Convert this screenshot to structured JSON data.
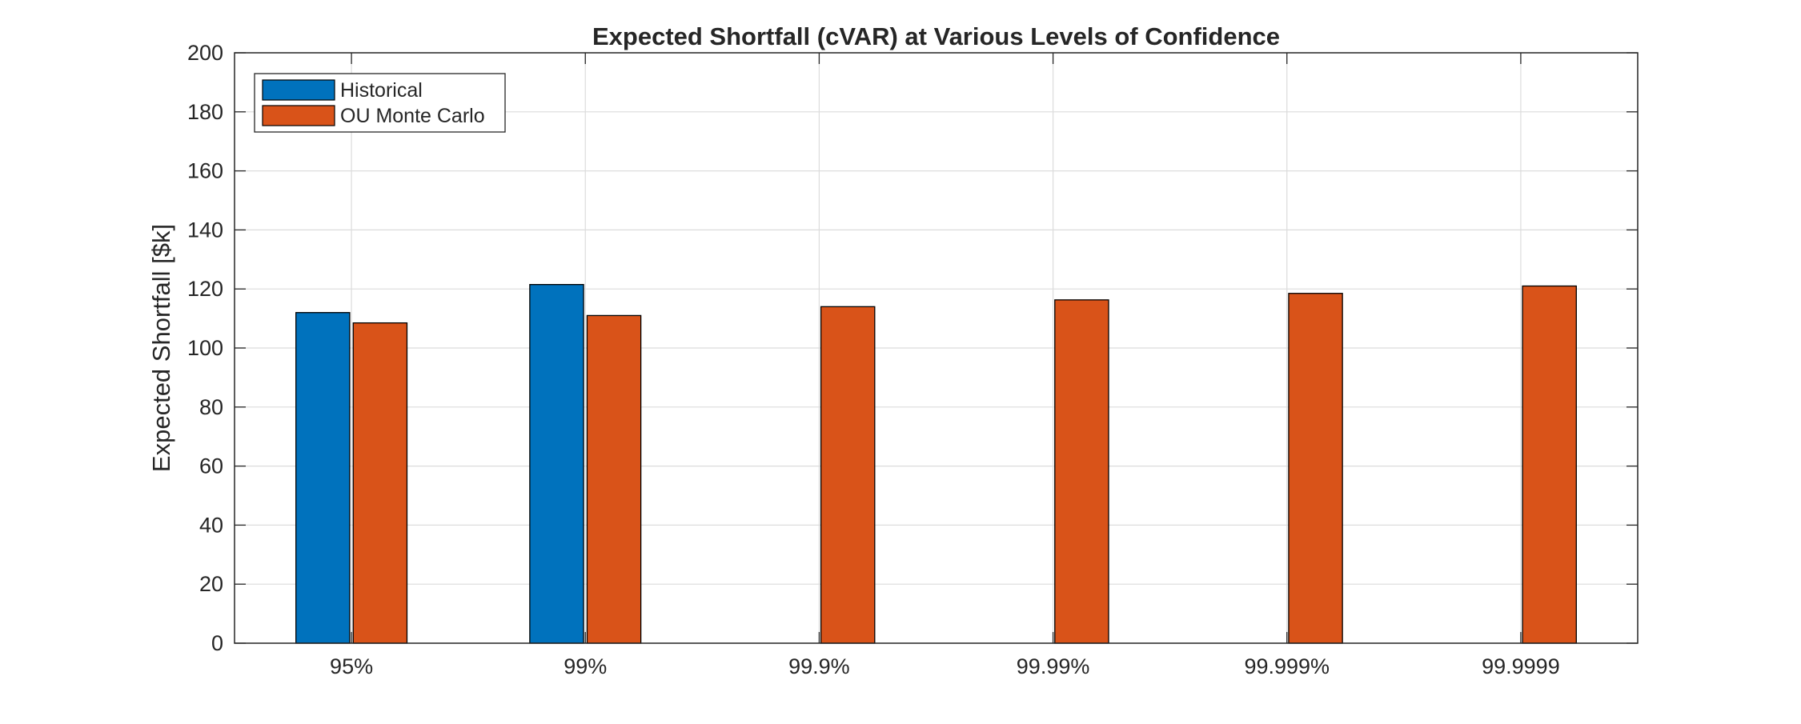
{
  "chart_data": {
    "type": "bar",
    "title": "Expected Shortfall (cVAR) at Various Levels of Confidence",
    "xlabel": "",
    "ylabel": "Expected Shortfall [$k]",
    "categories": [
      "95%",
      "99%",
      "99.9%",
      "99.99%",
      "99.999%",
      "99.9999"
    ],
    "series": [
      {
        "name": "Historical",
        "color": "#0072BD",
        "values": [
          112,
          121.5,
          null,
          null,
          null,
          null
        ]
      },
      {
        "name": "OU Monte Carlo",
        "color": "#D95319",
        "values": [
          108.5,
          111,
          114,
          116.3,
          118.5,
          121
        ]
      }
    ],
    "ylim": [
      0,
      200
    ],
    "yticks": [
      0,
      20,
      40,
      60,
      80,
      100,
      120,
      140,
      160,
      180,
      200
    ],
    "grid": true,
    "legend_position": "top-left"
  }
}
